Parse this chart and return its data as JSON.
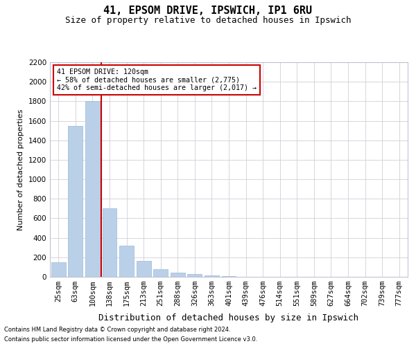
{
  "title1": "41, EPSOM DRIVE, IPSWICH, IP1 6RU",
  "title2": "Size of property relative to detached houses in Ipswich",
  "xlabel": "Distribution of detached houses by size in Ipswich",
  "ylabel": "Number of detached properties",
  "footer1": "Contains HM Land Registry data © Crown copyright and database right 2024.",
  "footer2": "Contains public sector information licensed under the Open Government Licence v3.0.",
  "bin_labels": [
    "25sqm",
    "63sqm",
    "100sqm",
    "138sqm",
    "175sqm",
    "213sqm",
    "251sqm",
    "288sqm",
    "326sqm",
    "363sqm",
    "401sqm",
    "439sqm",
    "476sqm",
    "514sqm",
    "551sqm",
    "589sqm",
    "627sqm",
    "664sqm",
    "702sqm",
    "739sqm",
    "777sqm"
  ],
  "bar_values": [
    150,
    1550,
    1800,
    700,
    320,
    160,
    80,
    40,
    25,
    15,
    5,
    2,
    1,
    0,
    0,
    0,
    0,
    0,
    0,
    0,
    0
  ],
  "bar_color": "#bad0e8",
  "bar_edge_color": "#9ab8d8",
  "property_bin_index": 2,
  "vline_color": "#cc0000",
  "annotation_text": "41 EPSOM DRIVE: 120sqm\n← 58% of detached houses are smaller (2,775)\n42% of semi-detached houses are larger (2,017) →",
  "annotation_box_color": "#ffffff",
  "annotation_border_color": "#cc0000",
  "ylim": [
    0,
    2200
  ],
  "yticks": [
    0,
    200,
    400,
    600,
    800,
    1000,
    1200,
    1400,
    1600,
    1800,
    2000,
    2200
  ],
  "bg_color": "#ffffff",
  "grid_color": "#d0d0d8",
  "title1_fontsize": 11,
  "title2_fontsize": 9,
  "xlabel_fontsize": 9,
  "ylabel_fontsize": 8,
  "tick_fontsize": 7.5,
  "footer_fontsize": 6
}
